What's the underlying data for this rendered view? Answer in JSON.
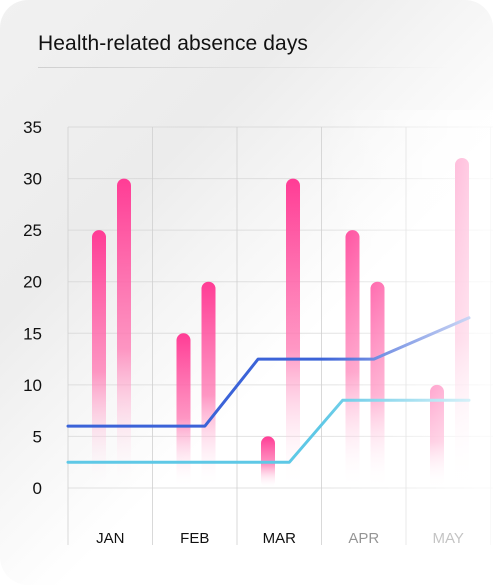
{
  "title": "Health-related absence days",
  "colors": {
    "bar_top": "#ff4fa0",
    "bar_bottom": "#ffffff",
    "line_dark": "#3b63d8",
    "line_light": "#5ec8e6",
    "grid": "#cfcfcf",
    "text": "#111111"
  },
  "chart_data": {
    "type": "bar",
    "title": "Health-related absence days",
    "xlabel": "",
    "ylabel": "",
    "ylim": [
      0,
      35
    ],
    "yticks": [
      "0",
      "5",
      "10",
      "15",
      "20",
      "25",
      "30",
      "35"
    ],
    "grid": true,
    "categories": [
      "JAN",
      "FEB",
      "MAR",
      "APR",
      "MAY"
    ],
    "series": [
      {
        "values": [
          25,
          15,
          5,
          25,
          10
        ]
      },
      {
        "values": [
          30,
          20,
          30,
          20,
          32
        ]
      }
    ],
    "lines": [
      {
        "values": [
          6,
          6,
          12.5,
          12.5,
          16.5
        ]
      },
      {
        "values": [
          2.5,
          2.5,
          2.5,
          8.5,
          8.5
        ]
      }
    ]
  }
}
